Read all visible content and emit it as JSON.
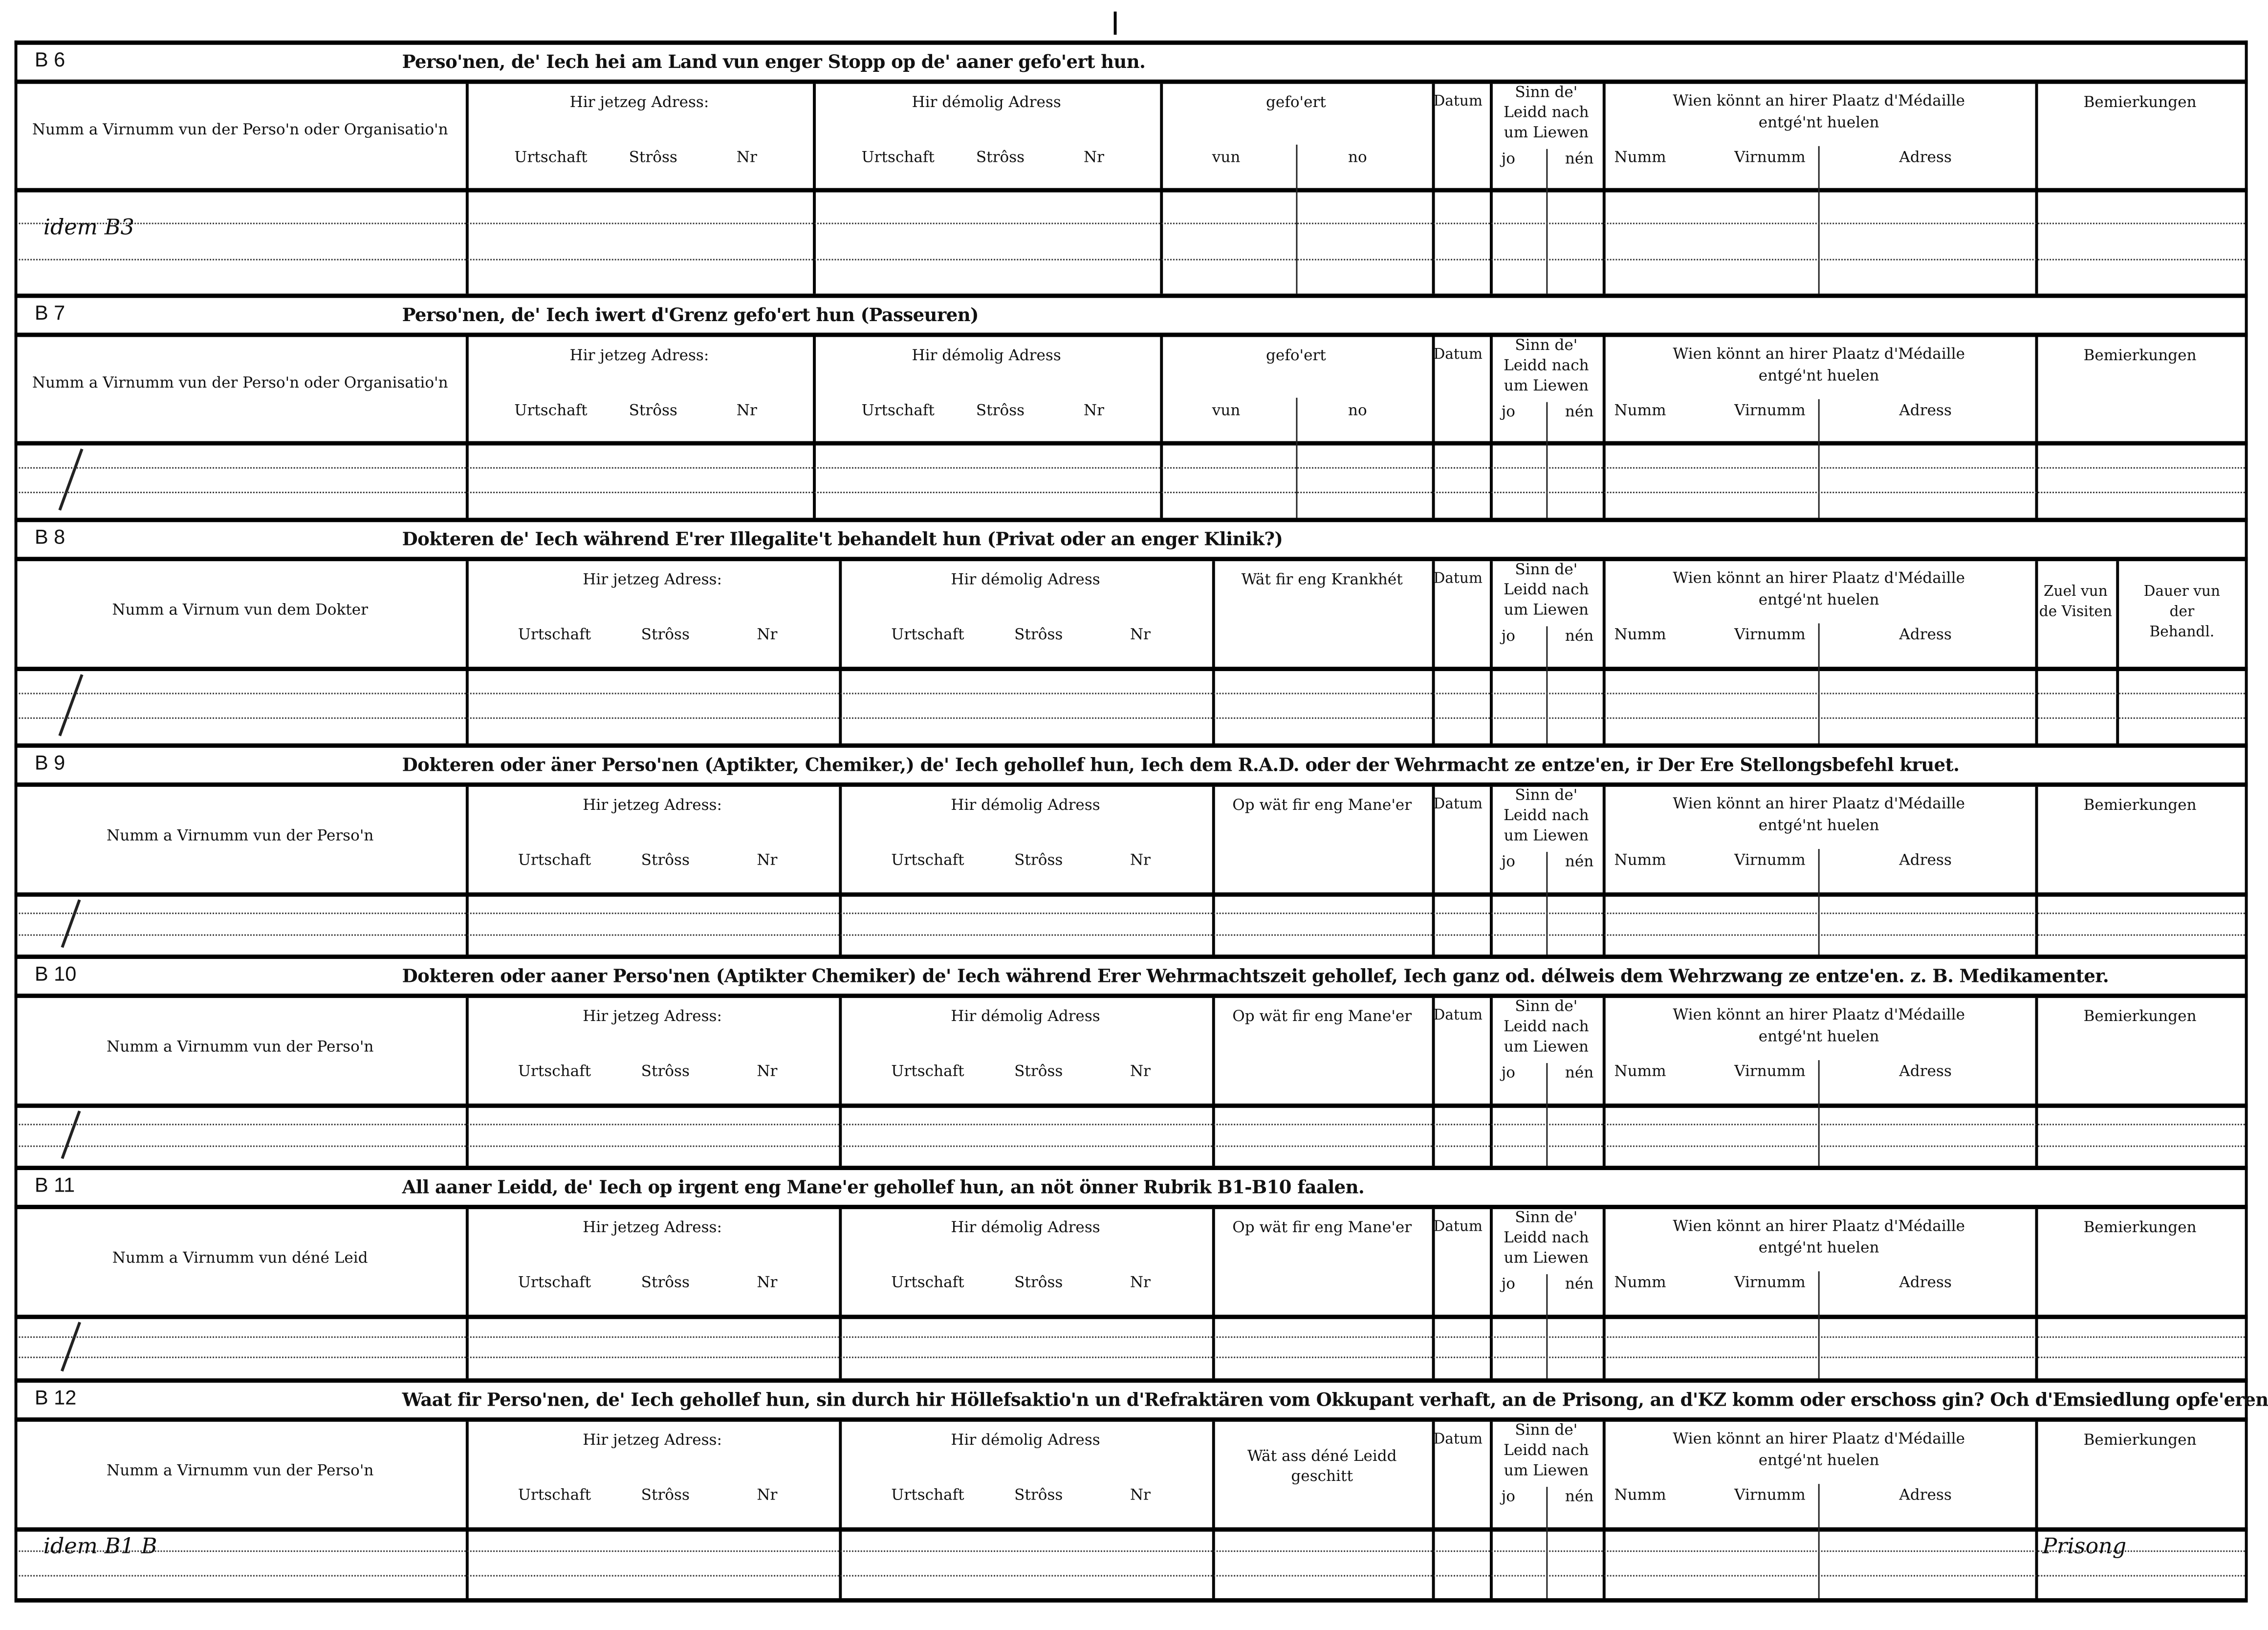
{
  "labels": {
    "current_address": "Hir jetzeg Adress:",
    "former_address": "Hir démolig Adress",
    "address_sub": [
      "Urtschaft",
      "Strôss",
      "Nr"
    ],
    "datum": "Datum",
    "sinn": [
      "Sinn  de'",
      "Leidd   nach",
      "um  Liewen"
    ],
    "jo": "jo",
    "nen": "nén",
    "medal": [
      "Wien  könnt  an  hirer  Plaatz  d'Médaille",
      "entgé'nt  huelen"
    ],
    "medal_sub": [
      "Numm",
      "Virnumm",
      "Adress"
    ],
    "remarks": "Bemierkungen"
  },
  "sections": [
    {
      "id": "B 6",
      "title": "Perso'nen, de' Iech hei am Land vun enger Stopp  op de'  aaner gefo'ert hun.",
      "name_header": "Numm a Virnumm vun der Perso'n oder Organisatio'n",
      "col3": "gefo'ert",
      "col3_sub": [
        "vun",
        "no"
      ],
      "handwriting": "idem  B3"
    },
    {
      "id": "B 7",
      "title": "Perso'nen,  de'  Iech  iwert  d'Grenz  gefo'ert  hun  (Passeuren)",
      "name_header": "Numm a Virnumm vun der Perso'n oder Organisatio'n",
      "col3": "gefo'ert",
      "col3_sub": [
        "vun",
        "no"
      ]
    },
    {
      "id": "B 8",
      "title": "Dokteren de' Iech während E'rer Illegalite't behandelt hun (Privat  oder  an enger Klinik?)",
      "name_header": "Numm a Virnum vun dem Dokter",
      "col3": "Wät  fir  eng  Krankhét",
      "extra_cols": [
        "Zuel vun de Visiten",
        "Dauer vun der Behandl."
      ]
    },
    {
      "id": "B 9",
      "title": "Dokteren oder äner Perso'nen (Aptikter, Chemiker,) de' Iech gehollef hun, Iech dem R.A.D. oder der Wehrmacht ze entze'en, ir Der Ere Stellongsbefehl kruet.",
      "name_header": "Numm  a  Virnumm  vun der Perso'n",
      "col3": "Op  wät  fir  eng  Mane'er"
    },
    {
      "id": "B 10",
      "title": "Dokteren oder aaner Perso'nen (Aptikter Chemiker) de' Iech während Erer Wehrmachtszeit gehollef, Iech ganz od. délweis dem Wehrzwang ze entze'en. z. B. Medikamenter.",
      "name_header": "Numm  a  Virnumm  vun der Perso'n",
      "col3": "Op  wät  fir  eng  Mane'er"
    },
    {
      "id": "B 11",
      "title": "All aaner Leidd, de' Iech op irgent eng Mane'er  gehollef hun, an nöt önner Rubrik B1-B10 faalen.",
      "name_header": "Numm  a  Virnumm  vun  déné  Leid",
      "col3": "Op  wät  fir  eng  Mane'er"
    },
    {
      "id": "B 12",
      "title": "Waat fir Perso'nen, de' Iech gehollef hun, sin durch hir Höllefsaktio'n un d'Refraktären vom Okkupant verhaft, an de Prisong, an d'KZ komm oder  erschoss gin? Och d'Emsiedlung opfe'eren.",
      "name_header": "Numm  a  Virnumm  vun der Perso'n",
      "col3": "Wät  ass  déné  Leidd  geschitt",
      "handwriting": "idem  B1 B",
      "remarks_handwriting": "Prisong"
    }
  ]
}
